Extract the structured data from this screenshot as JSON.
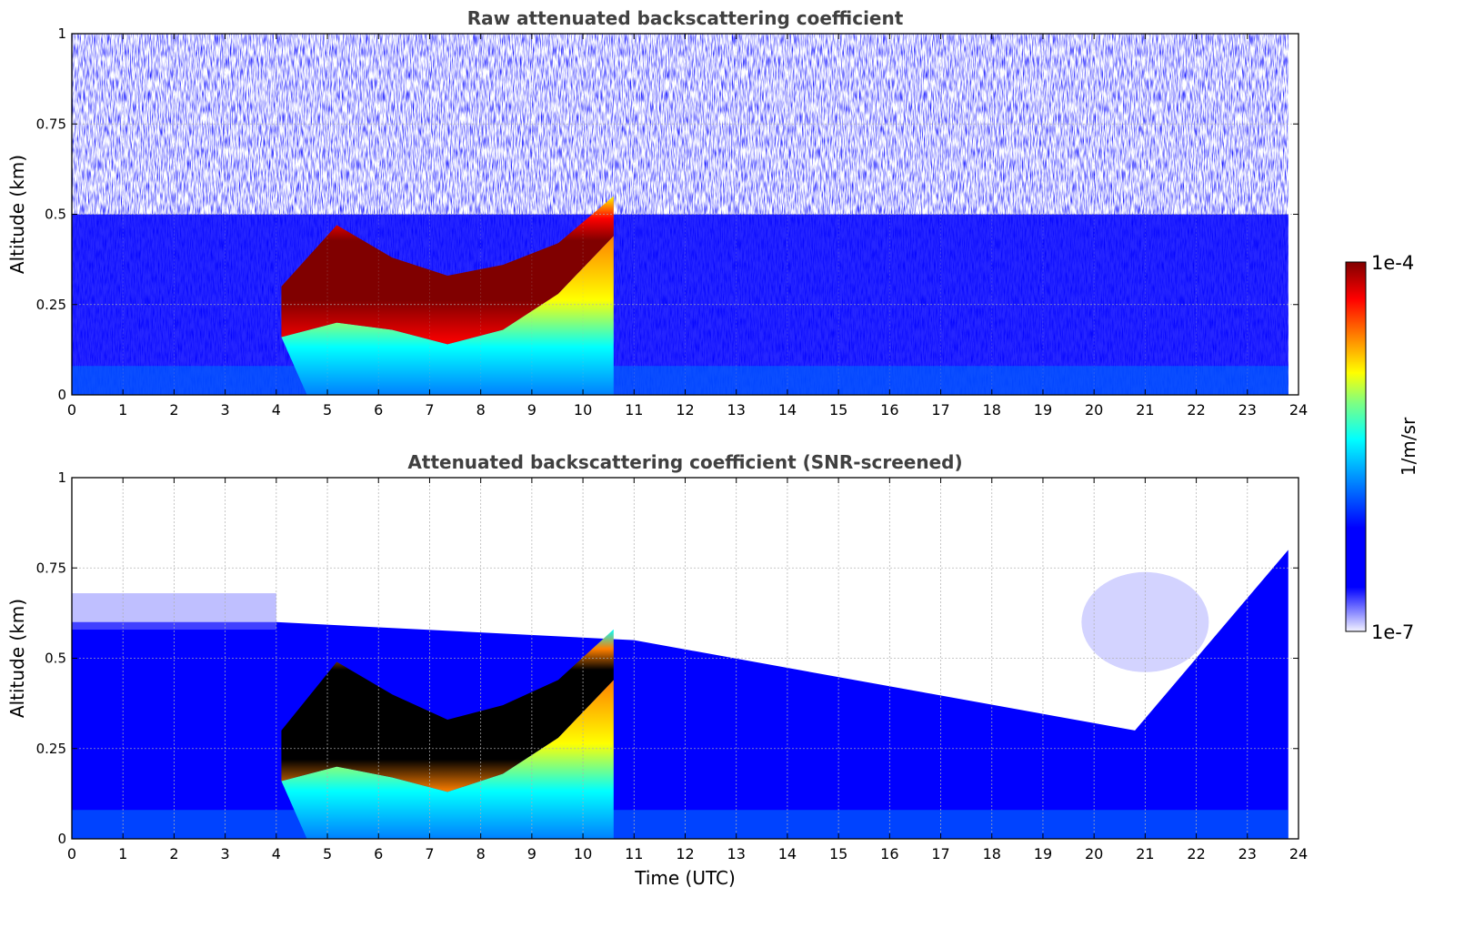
{
  "chart_data": [
    {
      "type": "heatmap",
      "title": "Raw attenuated backscattering coefficient",
      "xlabel": "",
      "ylabel": "Altitude (km)",
      "xlim": [
        0,
        24
      ],
      "ylim": [
        0,
        1
      ],
      "x_ticks": [
        "0",
        "1",
        "2",
        "3",
        "4",
        "5",
        "6",
        "7",
        "8",
        "9",
        "10",
        "11",
        "12",
        "13",
        "14",
        "15",
        "16",
        "17",
        "18",
        "19",
        "20",
        "21",
        "22",
        "23",
        "24"
      ],
      "y_ticks": [
        "0",
        "0.25",
        "0.5",
        "0.75",
        "1"
      ],
      "grid": true,
      "features": [
        {
          "name": "cloud layer",
          "time_start": 4.1,
          "time_end": 10.6,
          "top_km": [
            0.3,
            0.47,
            0.38,
            0.33,
            0.36,
            0.42,
            0.55
          ],
          "base_km": [
            0.16,
            0.2,
            0.18,
            0.14,
            0.18,
            0.28,
            0.44
          ]
        },
        {
          "name": "noisy signal above",
          "altitude_min_km": 0.5
        }
      ]
    },
    {
      "type": "heatmap",
      "title": "Attenuated backscattering coefficient (SNR-screened)",
      "xlabel": "Time (UTC)",
      "ylabel": "Altitude (km)",
      "xlim": [
        0,
        24
      ],
      "ylim": [
        0,
        1
      ],
      "x_ticks": [
        "0",
        "1",
        "2",
        "3",
        "4",
        "5",
        "6",
        "7",
        "8",
        "9",
        "10",
        "11",
        "12",
        "13",
        "14",
        "15",
        "16",
        "17",
        "18",
        "19",
        "20",
        "21",
        "22",
        "23",
        "24"
      ],
      "y_ticks": [
        "0",
        "0.25",
        "0.5",
        "0.75",
        "1"
      ],
      "grid": true,
      "features": [
        {
          "name": "cloud layer (saturated core)",
          "time_start": 4.1,
          "time_end": 10.6,
          "top_km": [
            0.3,
            0.49,
            0.4,
            0.33,
            0.37,
            0.44,
            0.58
          ],
          "base_km": [
            0.16,
            0.2,
            0.17,
            0.13,
            0.18,
            0.28,
            0.44
          ]
        },
        {
          "name": "boundary layer top",
          "time_points": [
            0,
            4,
            11,
            20.8,
            24
          ],
          "altitude_km": [
            0.6,
            0.6,
            0.55,
            0.3,
            0.8
          ]
        }
      ]
    }
  ],
  "colorbar": {
    "label": "1/m/sr",
    "min_label": "1e-7",
    "max_label": "1e-4",
    "colormap": [
      "#f2f2ff",
      "#0000ff",
      "#0080ff",
      "#00ffff",
      "#80ff80",
      "#ffff00",
      "#ff8000",
      "#ff0000",
      "#800000"
    ]
  }
}
